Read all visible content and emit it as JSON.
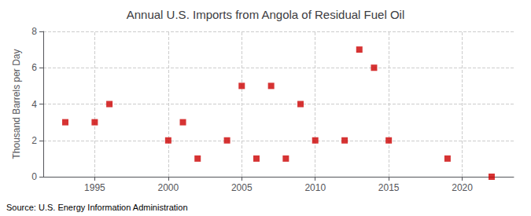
{
  "chart_data": {
    "type": "scatter",
    "title": "Annual U.S. Imports from Angola of Residual Fuel Oil",
    "ylabel": "Thousand Barrels per Day",
    "annotations": [
      "Source: U.S. Energy Information Administration"
    ],
    "x": [
      1993,
      1995,
      1996,
      2000,
      2001,
      2002,
      2004,
      2005,
      2006,
      2007,
      2008,
      2009,
      2010,
      2012,
      2013,
      2014,
      2015,
      2019,
      2022
    ],
    "values": [
      3,
      3,
      4,
      2,
      3,
      1,
      2,
      5,
      1,
      5,
      1,
      4,
      2,
      2,
      7,
      6,
      2,
      1,
      0
    ],
    "color": "#cc0000",
    "marker": "square",
    "xlim": [
      1991.5,
      2023.5
    ],
    "ylim": [
      0,
      8
    ],
    "xticks": [
      1995,
      2000,
      2005,
      2010,
      2015,
      2020
    ],
    "yticks": [
      0,
      2,
      4,
      6,
      8
    ],
    "grid": true
  }
}
